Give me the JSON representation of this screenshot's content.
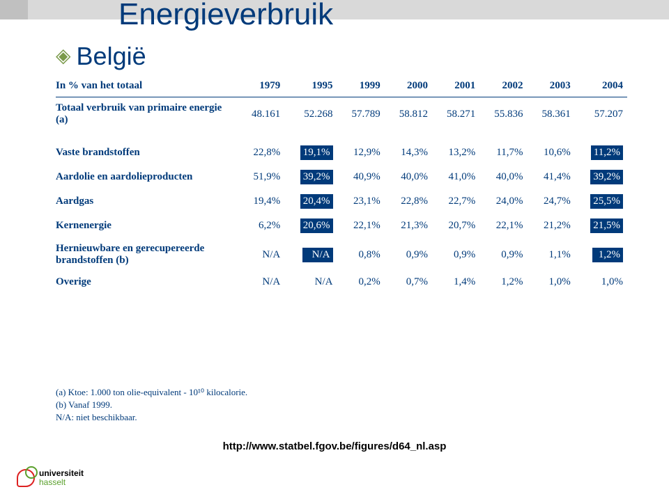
{
  "title": "Energieverbruik",
  "subtitle": "België",
  "table": {
    "header_label": "In % van het totaal",
    "years": [
      "1979",
      "1995",
      "1999",
      "2000",
      "2001",
      "2002",
      "2003",
      "2004"
    ],
    "totals_row": {
      "label": "Totaal verbruik van primaire energie (a)",
      "values": [
        "48.161",
        "52.268",
        "57.789",
        "58.812",
        "58.271",
        "55.836",
        "58.361",
        "57.207"
      ],
      "highlight": [
        false,
        false,
        false,
        false,
        false,
        false,
        false,
        false
      ]
    },
    "rows": [
      {
        "label": "Vaste brandstoffen",
        "values": [
          "22,8%",
          "19,1%",
          "12,9%",
          "14,3%",
          "13,2%",
          "11,7%",
          "10,6%",
          "11,2%"
        ],
        "highlight": [
          false,
          true,
          false,
          false,
          false,
          false,
          false,
          true
        ]
      },
      {
        "label": "Aardolie en aardolieproducten",
        "values": [
          "51,9%",
          "39,2%",
          "40,9%",
          "40,0%",
          "41,0%",
          "40,0%",
          "41,4%",
          "39,2%"
        ],
        "highlight": [
          false,
          true,
          false,
          false,
          false,
          false,
          false,
          true
        ]
      },
      {
        "label": "Aardgas",
        "values": [
          "19,4%",
          "20,4%",
          "23,1%",
          "22,8%",
          "22,7%",
          "24,0%",
          "24,7%",
          "25,5%"
        ],
        "highlight": [
          false,
          true,
          false,
          false,
          false,
          false,
          false,
          true
        ]
      },
      {
        "label": "Kernenergie",
        "values": [
          "6,2%",
          "20,6%",
          "22,1%",
          "21,3%",
          "20,7%",
          "22,1%",
          "21,2%",
          "21,5%"
        ],
        "highlight": [
          false,
          true,
          false,
          false,
          false,
          false,
          false,
          true
        ]
      },
      {
        "label": "Hernieuwbare en gerecupereerde brandstoffen (b)",
        "values": [
          "N/A",
          "N/A",
          "0,8%",
          "0,9%",
          "0,9%",
          "0,9%",
          "1,1%",
          "1,2%"
        ],
        "highlight": [
          false,
          true,
          false,
          false,
          false,
          false,
          false,
          true
        ]
      },
      {
        "label": "Overige",
        "values": [
          "N/A",
          "N/A",
          "0,2%",
          "0,7%",
          "1,4%",
          "1,2%",
          "1,0%",
          "1,0%"
        ],
        "highlight": [
          false,
          false,
          false,
          false,
          false,
          false,
          false,
          false
        ]
      }
    ]
  },
  "footnotes": [
    "(a) Ktoe: 1.000 ton olie-equivalent - 10¹⁰ kilocalorie.",
    "(b) Vanaf 1999.",
    "N/A: niet beschikbaar."
  ],
  "source": "http://www.statbel.fgov.be/figures/d64_nl.asp",
  "logo": {
    "line1": "universiteit",
    "line2": "hasselt"
  },
  "colors": {
    "brand_blue": "#003a7a",
    "highlight_bg": "#003a7a",
    "highlight_fg": "#ffffff",
    "stripe": "#d9d9d9",
    "bullet": "#7a9a4a"
  }
}
